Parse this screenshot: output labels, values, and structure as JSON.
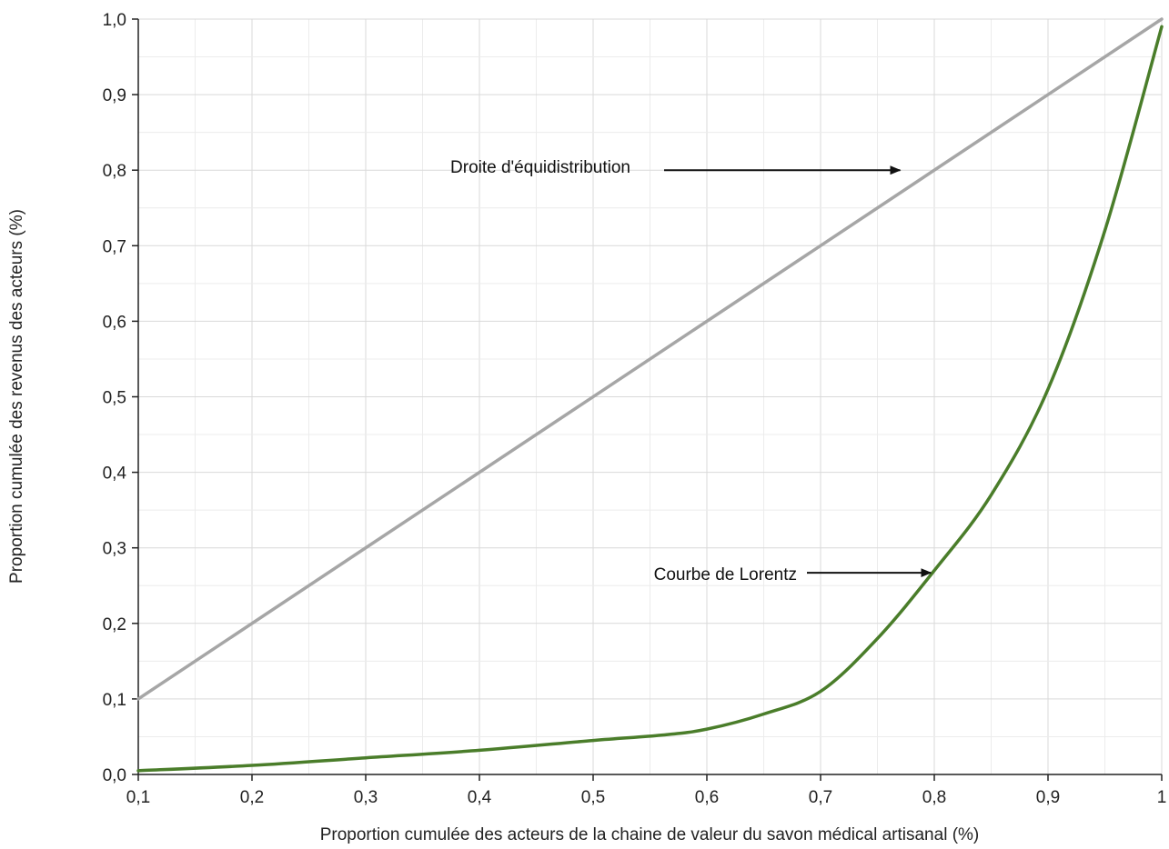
{
  "chart_data": {
    "type": "line",
    "xlabel": "Proportion cumulée des acteurs de la chaine de valeur du savon médical artisanal (%)",
    "ylabel": "Proportion cumulée des revenus des acteurs (%)",
    "xlim": [
      0.1,
      1.0
    ],
    "ylim": [
      0.0,
      1.0
    ],
    "grid": true,
    "x_ticks": [
      {
        "value": 0.1,
        "label": "0,1"
      },
      {
        "value": 0.2,
        "label": "0,2"
      },
      {
        "value": 0.3,
        "label": "0,3"
      },
      {
        "value": 0.4,
        "label": "0,4"
      },
      {
        "value": 0.5,
        "label": "0,5"
      },
      {
        "value": 0.6,
        "label": "0,6"
      },
      {
        "value": 0.7,
        "label": "0,7"
      },
      {
        "value": 0.8,
        "label": "0,8"
      },
      {
        "value": 0.9,
        "label": "0,9"
      },
      {
        "value": 1.0,
        "label": "1"
      }
    ],
    "y_ticks": [
      {
        "value": 0.0,
        "label": "0,0"
      },
      {
        "value": 0.1,
        "label": "0,1"
      },
      {
        "value": 0.2,
        "label": "0,2"
      },
      {
        "value": 0.3,
        "label": "0,3"
      },
      {
        "value": 0.4,
        "label": "0,4"
      },
      {
        "value": 0.5,
        "label": "0,5"
      },
      {
        "value": 0.6,
        "label": "0,6"
      },
      {
        "value": 0.7,
        "label": "0,7"
      },
      {
        "value": 0.8,
        "label": "0,8"
      },
      {
        "value": 0.9,
        "label": "0,9"
      },
      {
        "value": 1.0,
        "label": "1,0"
      }
    ],
    "series": [
      {
        "name": "Droite d'équidistribution",
        "color": "#a6a6a6",
        "x": [
          0.1,
          1.0
        ],
        "y": [
          0.1,
          1.0
        ]
      },
      {
        "name": "Courbe de Lorentz",
        "color": "#4a7d2a",
        "x": [
          0.1,
          0.2,
          0.3,
          0.4,
          0.5,
          0.56,
          0.6,
          0.65,
          0.7,
          0.75,
          0.8,
          0.85,
          0.9,
          0.95,
          1.0
        ],
        "y": [
          0.005,
          0.012,
          0.022,
          0.032,
          0.045,
          0.052,
          0.06,
          0.08,
          0.11,
          0.18,
          0.27,
          0.37,
          0.51,
          0.72,
          0.99
        ]
      }
    ],
    "annotations": [
      {
        "text": "Droite d'équidistribution",
        "arrow_to": [
          0.77,
          0.8
        ]
      },
      {
        "text": "Courbe de Lorentz",
        "arrow_to": [
          0.797,
          0.267
        ]
      }
    ]
  }
}
